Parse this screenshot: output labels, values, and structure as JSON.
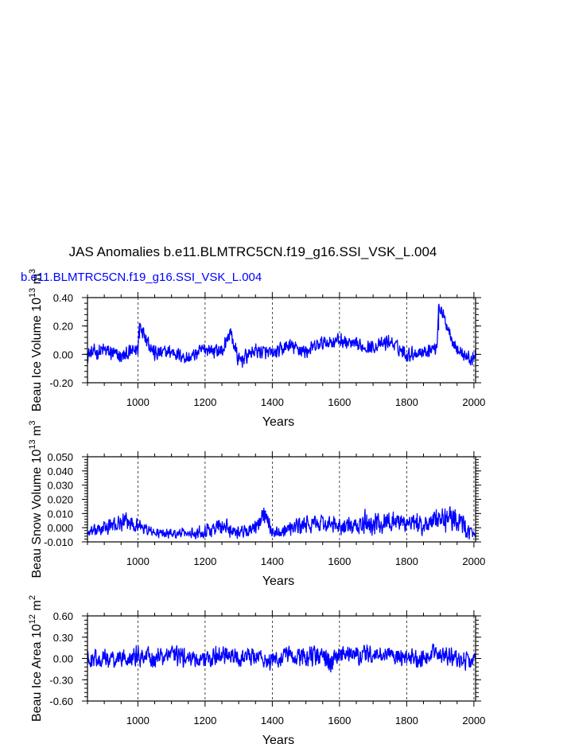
{
  "title": "JAS Anomalies b.e11.BLMTRC5CN.f19_g16.SSI_VSK_L.004",
  "legend_label": "b.e11.BLMTRC5CN.f19_g16.SSI_VSK_L.004",
  "colors": {
    "series": "#0000ff",
    "axes": "#000000",
    "background": "#ffffff"
  },
  "chart_data": [
    {
      "type": "line",
      "title": "",
      "xlabel": "Years",
      "ylabel": "Beau Ice Volume 10",
      "ylabel_exp": "13",
      "ylabel_unit": " m",
      "ylabel_unit_exp": "3",
      "xlim": [
        850,
        2005
      ],
      "ylim": [
        -0.2,
        0.4
      ],
      "xticks": [
        1000,
        1200,
        1400,
        1600,
        1800,
        2000
      ],
      "xtick_labels": [
        "1000",
        "1200",
        "1400",
        "1600",
        "1800",
        "2000"
      ],
      "yticks": [
        -0.2,
        0.0,
        0.2,
        0.4
      ],
      "ytick_labels": [
        "-0.20",
        "0.00",
        "0.20",
        "0.40"
      ],
      "grid": "dashed vertical at x ticks",
      "series": [
        {
          "x": [
            850,
            900,
            950,
            1000,
            1005,
            1050,
            1100,
            1150,
            1200,
            1250,
            1275,
            1300,
            1350,
            1400,
            1450,
            1500,
            1550,
            1600,
            1650,
            1700,
            1750,
            1800,
            1850,
            1890,
            1895,
            1950,
            2000,
            2005
          ],
          "y": [
            0.0,
            0.03,
            -0.02,
            0.04,
            0.22,
            0.0,
            0.02,
            -0.03,
            0.04,
            0.02,
            0.16,
            -0.05,
            0.03,
            0.0,
            0.06,
            0.02,
            0.08,
            0.1,
            0.06,
            0.05,
            0.09,
            0.0,
            0.02,
            0.05,
            0.35,
            0.03,
            -0.05,
            0.03
          ],
          "amplitude": [
            0.06,
            0.07,
            0.06,
            0.06,
            0.07,
            0.07,
            0.06,
            0.06,
            0.06,
            0.07,
            0.06,
            0.07,
            0.06,
            0.06,
            0.06,
            0.06,
            0.06,
            0.06,
            0.06,
            0.05,
            0.06,
            0.06,
            0.06,
            0.05,
            0.05,
            0.06,
            0.06,
            0.05
          ]
        }
      ]
    },
    {
      "type": "line",
      "title": "",
      "xlabel": "Years",
      "ylabel": "Beau Snow Volume 10",
      "ylabel_exp": "13",
      "ylabel_unit": " m",
      "ylabel_unit_exp": "3",
      "xlim": [
        850,
        2005
      ],
      "ylim": [
        -0.01,
        0.05
      ],
      "xticks": [
        1000,
        1200,
        1400,
        1600,
        1800,
        2000
      ],
      "xtick_labels": [
        "1000",
        "1200",
        "1400",
        "1600",
        "1800",
        "2000"
      ],
      "yticks": [
        -0.01,
        0.0,
        0.01,
        0.02,
        0.03,
        0.04,
        0.05
      ],
      "ytick_labels": [
        "-0.010",
        "0.000",
        "0.010",
        "0.020",
        "0.030",
        "0.040",
        "0.050"
      ],
      "grid": "dashed vertical at x ticks",
      "series": [
        {
          "x": [
            850,
            900,
            960,
            1000,
            1050,
            1100,
            1150,
            1200,
            1250,
            1300,
            1350,
            1380,
            1400,
            1450,
            1500,
            1550,
            1600,
            1650,
            1680,
            1700,
            1750,
            1800,
            1850,
            1900,
            1940,
            2005
          ],
          "y": [
            -0.004,
            0.0,
            0.004,
            0.002,
            -0.004,
            -0.004,
            -0.004,
            -0.002,
            0.001,
            -0.003,
            -0.001,
            0.012,
            -0.004,
            0.0,
            0.002,
            0.003,
            0.001,
            0.0,
            0.004,
            0.002,
            0.005,
            0.003,
            0.002,
            0.005,
            0.008,
            -0.007
          ],
          "amplitude": [
            0.004,
            0.006,
            0.007,
            0.006,
            0.004,
            0.004,
            0.004,
            0.006,
            0.008,
            0.005,
            0.006,
            0.008,
            0.004,
            0.006,
            0.007,
            0.007,
            0.007,
            0.008,
            0.01,
            0.009,
            0.009,
            0.008,
            0.009,
            0.01,
            0.011,
            0.004
          ]
        }
      ]
    },
    {
      "type": "line",
      "title": "",
      "xlabel": "Years",
      "ylabel": "Beau Ice Area 10",
      "ylabel_exp": "12",
      "ylabel_unit": " m",
      "ylabel_unit_exp": "2",
      "xlim": [
        850,
        2005
      ],
      "ylim": [
        -0.6,
        0.6
      ],
      "xticks": [
        1000,
        1200,
        1400,
        1600,
        1800,
        2000
      ],
      "xtick_labels": [
        "1000",
        "1200",
        "1400",
        "1600",
        "1800",
        "2000"
      ],
      "yticks": [
        -0.6,
        -0.3,
        0.0,
        0.3,
        0.6
      ],
      "ytick_labels": [
        "-0.60",
        "-0.30",
        "0.00",
        "0.30",
        "0.60"
      ],
      "grid": "dashed vertical at x ticks",
      "series": [
        {
          "x": [
            850,
            900,
            950,
            1000,
            1050,
            1100,
            1150,
            1200,
            1250,
            1300,
            1350,
            1400,
            1450,
            1500,
            1550,
            1570,
            1600,
            1650,
            1700,
            1750,
            1800,
            1850,
            1895,
            1950,
            2005
          ],
          "y": [
            0.0,
            0.0,
            0.0,
            0.05,
            0.0,
            0.05,
            0.0,
            0.0,
            0.05,
            0.0,
            0.05,
            -0.05,
            0.05,
            0.0,
            0.05,
            -0.1,
            0.05,
            0.05,
            0.05,
            0.05,
            0.0,
            0.0,
            0.1,
            0.0,
            -0.05
          ],
          "amplitude": [
            0.14,
            0.15,
            0.15,
            0.17,
            0.15,
            0.16,
            0.15,
            0.15,
            0.16,
            0.15,
            0.16,
            0.16,
            0.15,
            0.16,
            0.16,
            0.2,
            0.15,
            0.16,
            0.15,
            0.15,
            0.15,
            0.15,
            0.17,
            0.15,
            0.15
          ]
        }
      ]
    }
  ]
}
